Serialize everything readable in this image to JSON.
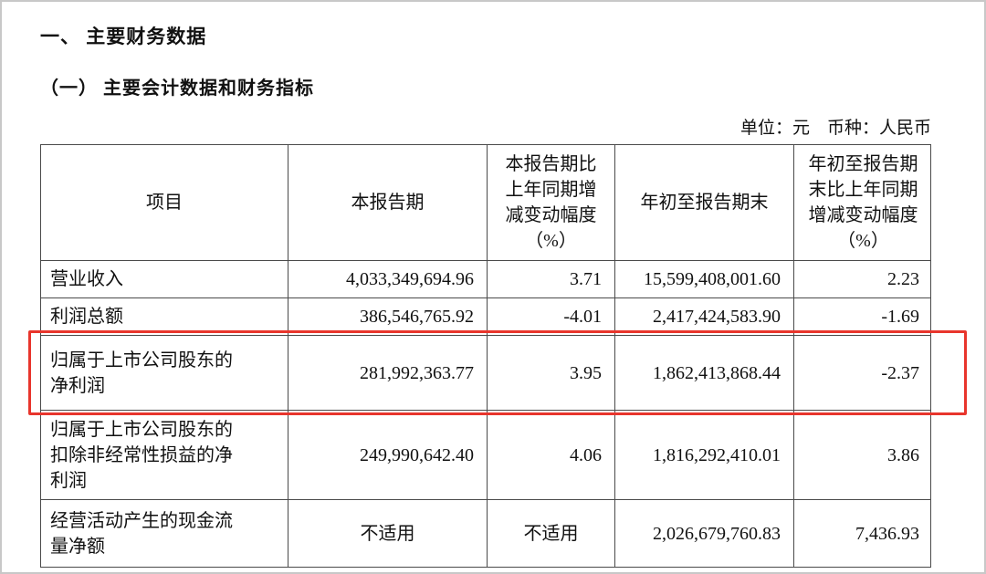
{
  "colors": {
    "highlight_box": "#e8352c"
  },
  "page": {
    "section_title": "一、 主要财务数据",
    "subsection_title": "（一） 主要会计数据和财务指标",
    "unit_note": "单位：元　币种：人民币"
  },
  "table": {
    "headers": [
      "项目",
      "本报告期",
      "本报告期比\n上年同期增\n减变动幅度\n（%）",
      "年初至报告期末",
      "年初至报告期\n末比上年同期\n增减变动幅度\n（%）"
    ],
    "rows": [
      {
        "item": "营业收入",
        "current_period": "4,033,349,694.96",
        "period_change_pct": "3.71",
        "ytd": "15,599,408,001.60",
        "ytd_change_pct": "2.23"
      },
      {
        "item": "利润总额",
        "current_period": "386,546,765.92",
        "period_change_pct": "-4.01",
        "ytd": "2,417,424,583.90",
        "ytd_change_pct": "-1.69"
      },
      {
        "item": "归属于上市公司股东的净利润",
        "current_period": "281,992,363.77",
        "period_change_pct": "3.95",
        "ytd": "1,862,413,868.44",
        "ytd_change_pct": "-2.37"
      },
      {
        "item": "归属于上市公司股东的扣除非经常性损益的净利润",
        "current_period": "249,990,642.40",
        "period_change_pct": "4.06",
        "ytd": "1,816,292,410.01",
        "ytd_change_pct": "3.86"
      },
      {
        "item": "经营活动产生的现金流量净额",
        "current_period": "不适用",
        "period_change_pct": "不适用",
        "ytd": "2,026,679,760.83",
        "ytd_change_pct": "7,436.93"
      }
    ]
  }
}
